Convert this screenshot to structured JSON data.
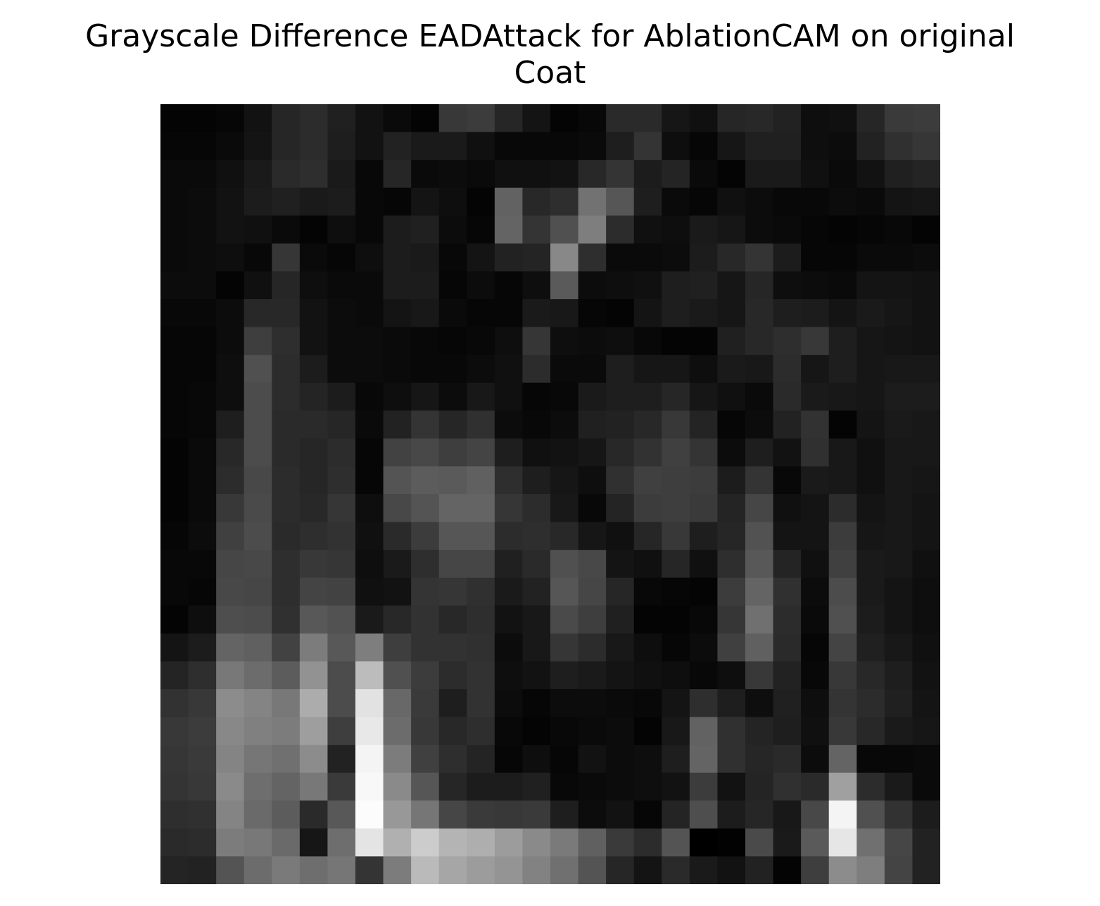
{
  "chart_data": {
    "type": "heatmap",
    "title_lines": [
      "Grayscale Difference EADAttack for AblationCAM on original",
      "Coat"
    ],
    "colormap": "gray",
    "axes_visible": false,
    "value_range": [
      0,
      255
    ],
    "rows": 28,
    "cols": 28,
    "values": [
      [
        4,
        4,
        6,
        18,
        38,
        44,
        32,
        18,
        10,
        4,
        56,
        60,
        38,
        20,
        4,
        8,
        42,
        42,
        22,
        16,
        38,
        40,
        34,
        14,
        16,
        38,
        58,
        60
      ],
      [
        6,
        6,
        10,
        20,
        38,
        44,
        30,
        18,
        34,
        26,
        26,
        16,
        8,
        8,
        8,
        10,
        30,
        52,
        14,
        6,
        22,
        32,
        32,
        14,
        12,
        34,
        48,
        54
      ],
      [
        10,
        10,
        16,
        26,
        42,
        46,
        26,
        8,
        38,
        10,
        12,
        10,
        16,
        16,
        18,
        40,
        52,
        28,
        36,
        10,
        4,
        26,
        26,
        16,
        10,
        18,
        32,
        36
      ],
      [
        10,
        12,
        18,
        28,
        32,
        26,
        28,
        8,
        6,
        20,
        14,
        4,
        98,
        40,
        46,
        114,
        86,
        30,
        10,
        6,
        16,
        12,
        8,
        8,
        12,
        10,
        20,
        22
      ],
      [
        10,
        12,
        18,
        16,
        10,
        4,
        14,
        8,
        28,
        32,
        12,
        6,
        100,
        52,
        80,
        126,
        44,
        16,
        14,
        26,
        22,
        12,
        10,
        6,
        4,
        6,
        8,
        4
      ],
      [
        10,
        12,
        14,
        8,
        54,
        10,
        6,
        14,
        28,
        26,
        8,
        20,
        34,
        36,
        136,
        46,
        10,
        10,
        12,
        28,
        40,
        52,
        28,
        6,
        6,
        10,
        10,
        12
      ],
      [
        12,
        12,
        4,
        16,
        38,
        14,
        10,
        10,
        28,
        28,
        6,
        12,
        6,
        14,
        90,
        12,
        14,
        16,
        30,
        32,
        22,
        38,
        14,
        12,
        10,
        20,
        20,
        18
      ],
      [
        8,
        8,
        12,
        40,
        40,
        18,
        12,
        10,
        20,
        24,
        10,
        6,
        6,
        26,
        24,
        6,
        4,
        20,
        30,
        26,
        22,
        40,
        30,
        28,
        20,
        26,
        22,
        18
      ],
      [
        6,
        6,
        12,
        62,
        46,
        18,
        12,
        12,
        10,
        8,
        6,
        8,
        14,
        54,
        14,
        12,
        14,
        8,
        4,
        4,
        32,
        40,
        46,
        56,
        30,
        22,
        20,
        18
      ],
      [
        6,
        6,
        14,
        80,
        44,
        28,
        12,
        12,
        10,
        8,
        8,
        12,
        16,
        44,
        10,
        10,
        30,
        22,
        22,
        14,
        26,
        24,
        44,
        22,
        30,
        22,
        24,
        24
      ],
      [
        6,
        8,
        14,
        76,
        44,
        36,
        28,
        8,
        14,
        22,
        12,
        24,
        16,
        6,
        8,
        26,
        30,
        30,
        38,
        22,
        16,
        10,
        42,
        26,
        24,
        22,
        28,
        28
      ],
      [
        6,
        8,
        30,
        76,
        42,
        42,
        38,
        10,
        34,
        52,
        38,
        48,
        12,
        8,
        12,
        32,
        34,
        40,
        56,
        36,
        6,
        12,
        34,
        50,
        4,
        20,
        26,
        24
      ],
      [
        4,
        10,
        40,
        76,
        42,
        38,
        44,
        6,
        66,
        72,
        62,
        68,
        30,
        16,
        18,
        22,
        40,
        50,
        64,
        52,
        12,
        30,
        18,
        48,
        24,
        16,
        24,
        24
      ],
      [
        4,
        10,
        44,
        72,
        44,
        38,
        46,
        6,
        84,
        92,
        90,
        96,
        46,
        30,
        22,
        14,
        48,
        64,
        62,
        60,
        28,
        52,
        8,
        26,
        24,
        16,
        24,
        22
      ],
      [
        4,
        10,
        56,
        74,
        44,
        40,
        54,
        14,
        72,
        84,
        100,
        100,
        54,
        44,
        24,
        8,
        36,
        60,
        62,
        58,
        36,
        70,
        16,
        20,
        44,
        20,
        24,
        20
      ],
      [
        6,
        12,
        64,
        76,
        42,
        46,
        50,
        16,
        42,
        60,
        86,
        86,
        44,
        46,
        40,
        22,
        16,
        38,
        56,
        30,
        38,
        82,
        20,
        20,
        60,
        22,
        24,
        20
      ],
      [
        8,
        8,
        70,
        72,
        46,
        56,
        54,
        14,
        26,
        46,
        70,
        70,
        32,
        42,
        80,
        72,
        20,
        16,
        38,
        16,
        46,
        88,
        36,
        16,
        64,
        26,
        24,
        16
      ],
      [
        8,
        6,
        72,
        70,
        46,
        68,
        66,
        16,
        18,
        52,
        54,
        48,
        26,
        34,
        86,
        70,
        38,
        8,
        6,
        4,
        60,
        100,
        48,
        12,
        76,
        26,
        20,
        14
      ],
      [
        4,
        14,
        78,
        76,
        48,
        88,
        82,
        26,
        40,
        50,
        40,
        46,
        18,
        24,
        74,
        62,
        32,
        4,
        4,
        8,
        54,
        112,
        44,
        10,
        80,
        28,
        20,
        14
      ],
      [
        20,
        28,
        100,
        96,
        66,
        124,
        88,
        126,
        62,
        50,
        50,
        48,
        12,
        24,
        54,
        44,
        24,
        14,
        6,
        12,
        64,
        96,
        42,
        6,
        68,
        32,
        24,
        16
      ],
      [
        36,
        46,
        120,
        108,
        92,
        146,
        76,
        188,
        80,
        60,
        44,
        50,
        14,
        18,
        30,
        26,
        20,
        16,
        14,
        8,
        14,
        56,
        34,
        8,
        56,
        40,
        30,
        18
      ],
      [
        50,
        56,
        140,
        132,
        120,
        172,
        76,
        226,
        104,
        58,
        30,
        50,
        12,
        6,
        12,
        12,
        10,
        8,
        20,
        46,
        30,
        14,
        32,
        14,
        52,
        44,
        32,
        20
      ],
      [
        56,
        60,
        136,
        128,
        124,
        158,
        62,
        232,
        108,
        56,
        40,
        46,
        8,
        4,
        8,
        10,
        12,
        4,
        24,
        98,
        48,
        36,
        30,
        16,
        56,
        40,
        26,
        22
      ],
      [
        54,
        58,
        132,
        118,
        112,
        140,
        34,
        244,
        124,
        64,
        46,
        36,
        6,
        14,
        6,
        18,
        12,
        14,
        30,
        100,
        48,
        38,
        42,
        12,
        100,
        8,
        8,
        10
      ],
      [
        52,
        56,
        138,
        110,
        100,
        120,
        58,
        248,
        138,
        86,
        38,
        28,
        28,
        32,
        8,
        10,
        12,
        14,
        18,
        60,
        18,
        36,
        48,
        42,
        160,
        44,
        26,
        10
      ],
      [
        46,
        48,
        132,
        106,
        92,
        42,
        88,
        252,
        152,
        118,
        70,
        58,
        56,
        58,
        30,
        12,
        18,
        6,
        36,
        78,
        28,
        38,
        24,
        72,
        244,
        80,
        50,
        28
      ],
      [
        42,
        44,
        124,
        120,
        106,
        22,
        110,
        228,
        176,
        204,
        180,
        174,
        156,
        138,
        122,
        96,
        58,
        44,
        84,
        0,
        2,
        74,
        26,
        90,
        230,
        112,
        70,
        34
      ],
      [
        36,
        34,
        84,
        108,
        122,
        110,
        118,
        52,
        124,
        186,
        166,
        156,
        148,
        130,
        112,
        84,
        38,
        20,
        42,
        26,
        18,
        34,
        4,
        62,
        140,
        126,
        68,
        34
      ]
    ]
  }
}
